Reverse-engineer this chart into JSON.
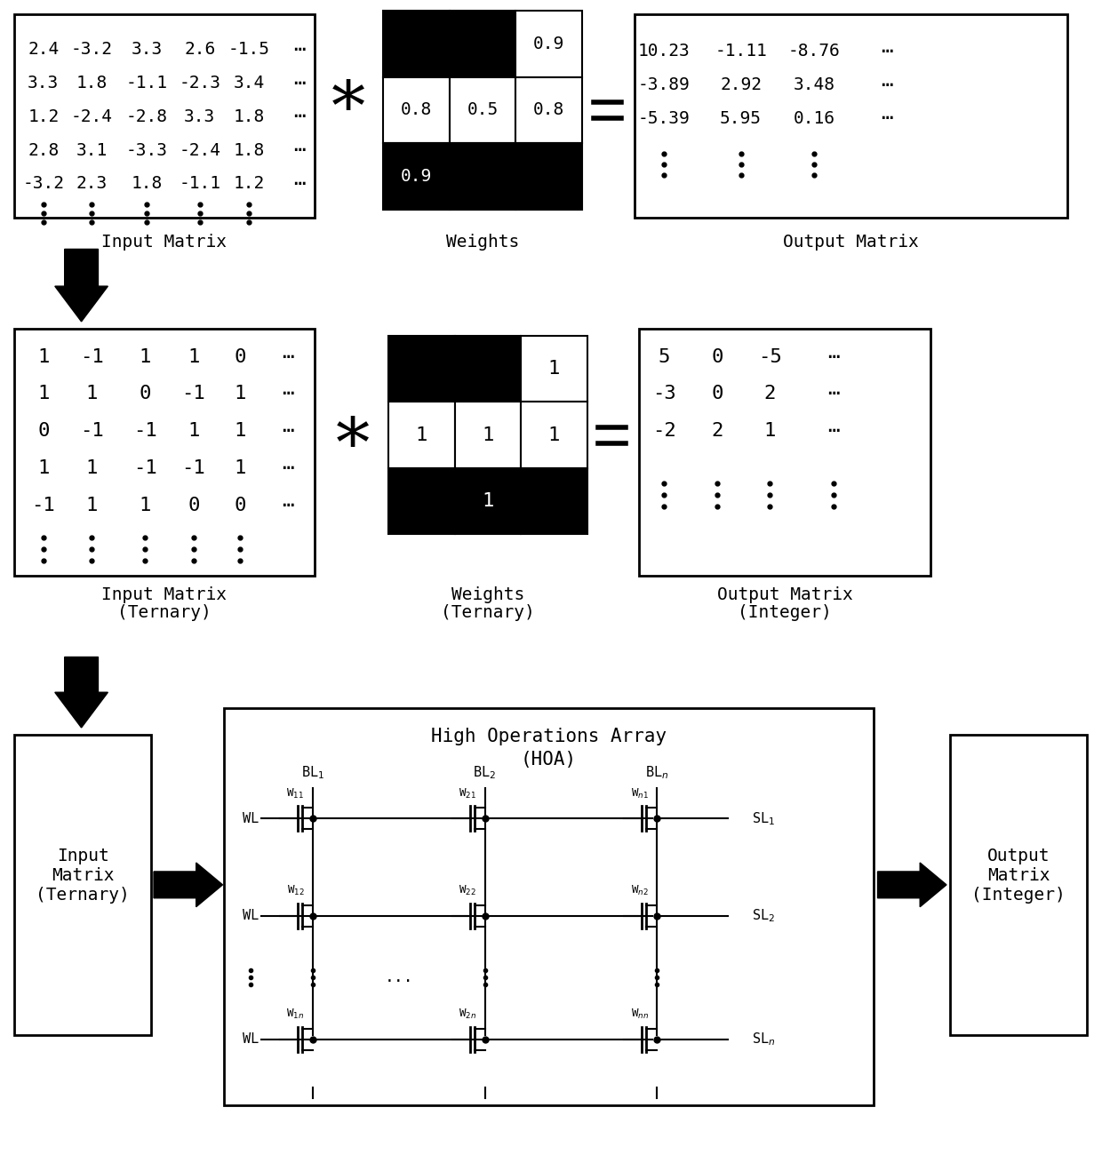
{
  "bg_color": "#ffffff",
  "row1": {
    "input_matrix": [
      [
        "2.4",
        "-3.2",
        "3.3",
        "2.6",
        "-1.5",
        "⋯"
      ],
      [
        "3.3",
        "1.8",
        "-1.1",
        "-2.3",
        "3.4",
        "⋯"
      ],
      [
        "1.2",
        "-2.4",
        "-2.8",
        "3.3",
        "1.8",
        "⋯"
      ],
      [
        "2.8",
        "3.1",
        "-3.3",
        "-2.4",
        "1.8",
        "⋯"
      ],
      [
        "-3.2",
        "2.3",
        "1.8",
        "-1.1",
        "1.2",
        "⋯"
      ]
    ],
    "weights_grid": [
      [
        "black",
        "black",
        "white"
      ],
      [
        "white",
        "white",
        "white"
      ],
      [
        "black",
        "black",
        "black"
      ]
    ],
    "weights_vals": [
      [
        null,
        null,
        "0.9"
      ],
      [
        "0.8",
        "0.5",
        "0.8"
      ],
      [
        "0.9",
        null,
        null
      ]
    ],
    "output_matrix": [
      [
        "10.23",
        "-1.11",
        "-8.76",
        "⋯"
      ],
      [
        "-3.89",
        "2.92",
        "3.48",
        "⋯"
      ],
      [
        "-5.39",
        "5.95",
        "0.16",
        "⋯"
      ]
    ],
    "label_input": "Input Matrix",
    "label_weights": "Weights",
    "label_output": "Output Matrix"
  },
  "row2": {
    "input_matrix": [
      [
        "1",
        "-1",
        "1",
        "1",
        "0",
        "⋯"
      ],
      [
        "1",
        "1",
        "0",
        "-1",
        "1",
        "⋯"
      ],
      [
        "0",
        "-1",
        "-1",
        "1",
        "1",
        "⋯"
      ],
      [
        "1",
        "1",
        "-1",
        "-1",
        "1",
        "⋯"
      ],
      [
        "-1",
        "1",
        "1",
        "0",
        "0",
        "⋯"
      ]
    ],
    "weights_grid": [
      [
        "black",
        "black",
        "white"
      ],
      [
        "white",
        "white",
        "white"
      ],
      [
        "black",
        "black",
        "black"
      ]
    ],
    "weights_vals": [
      [
        null,
        null,
        "1"
      ],
      [
        "1",
        "1",
        "1"
      ],
      [
        null,
        "1",
        null
      ]
    ],
    "output_matrix": [
      [
        "5",
        "0",
        "-5",
        "⋯"
      ],
      [
        "-3",
        "0",
        "2",
        "⋯"
      ],
      [
        "-2",
        "2",
        "1",
        "⋯"
      ]
    ],
    "label_input": "Input Matrix\n(Ternary)",
    "label_weights": "Weights\n(Ternary)",
    "label_output": "Output Matrix\n(Integer)"
  },
  "row3": {
    "label_left": "Input\nMatrix\n(Ternary)",
    "label_right": "Output\nMatrix\n(Integer)",
    "hoa_title": "High Operations Array\n(HOA)"
  }
}
